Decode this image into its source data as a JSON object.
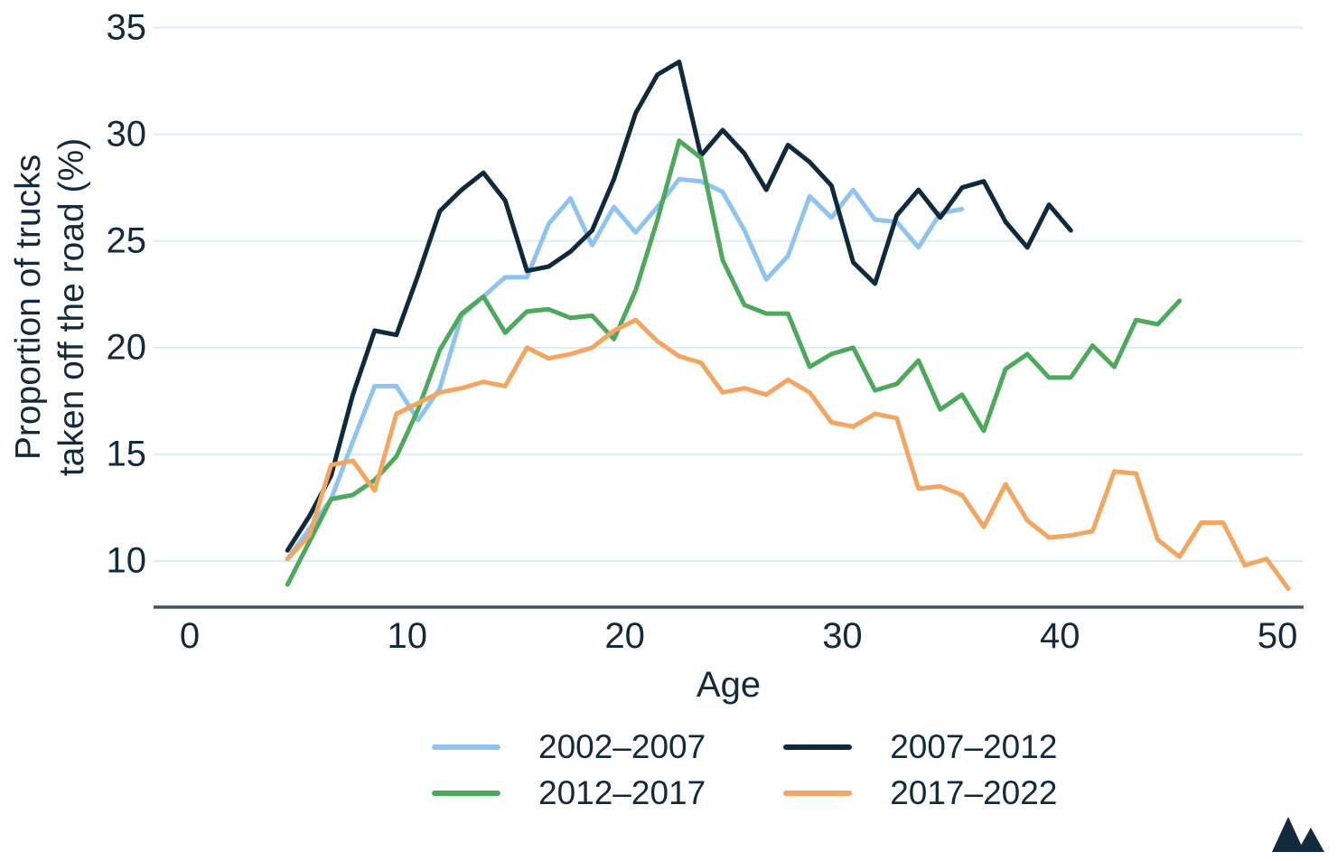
{
  "colors": {
    "text": "#13293d",
    "gridline": "#dcebf8",
    "axis_line": "#445468",
    "background": "#ffffff",
    "logo": "#13293d"
  },
  "logo": {
    "icon": "mountain-logo"
  },
  "chart_data": {
    "type": "line",
    "title": "",
    "xlabel": "Age",
    "ylabel_line1": "Proportion of trucks",
    "ylabel_line2": "taken off the road (%)",
    "x_ticks": [
      0,
      10,
      20,
      30,
      40,
      50
    ],
    "y_ticks": [
      10,
      15,
      20,
      25,
      30,
      35
    ],
    "xlim": [
      -1.66,
      51.2
    ],
    "ylim": [
      7.84,
      35.45
    ],
    "grid": "horizontal gridlines only",
    "legend_position": "bottom",
    "x_start": 4.5,
    "x_step": 1,
    "series": [
      {
        "name": "2002–2007",
        "color": "#8fc4f0",
        "values": [
          10.1,
          11.5,
          12.9,
          15.6,
          18.2,
          18.2,
          16.6,
          18.1,
          21.5,
          22.4,
          23.3,
          23.3,
          25.8,
          27.0,
          24.8,
          26.6,
          25.4,
          26.6,
          27.9,
          27.8,
          27.3,
          25.5,
          23.2,
          24.3,
          27.1,
          26.1,
          27.4,
          26.0,
          25.9,
          24.7,
          26.3,
          26.5
        ]
      },
      {
        "name": "2007–2012",
        "color": "#0f2a3c",
        "values": [
          10.5,
          12.1,
          14.0,
          17.8,
          20.8,
          20.6,
          23.4,
          26.4,
          27.4,
          28.2,
          26.9,
          23.6,
          23.8,
          24.5,
          25.5,
          27.9,
          31.0,
          32.8,
          33.4,
          29.0,
          30.2,
          29.1,
          27.4,
          29.5,
          28.7,
          27.6,
          24.0,
          23.0,
          26.2,
          27.4,
          26.1,
          27.5,
          27.8,
          25.9,
          24.7,
          26.7,
          25.5
        ]
      },
      {
        "name": "2012–2017",
        "color": "#4fa95c",
        "values": [
          8.9,
          10.9,
          12.9,
          13.1,
          13.8,
          14.9,
          17.1,
          19.9,
          21.6,
          22.4,
          20.7,
          21.7,
          21.8,
          21.4,
          21.5,
          20.4,
          22.7,
          26.0,
          29.7,
          28.9,
          24.1,
          22.0,
          21.6,
          21.6,
          19.1,
          19.7,
          20.0,
          18.0,
          18.3,
          19.4,
          17.1,
          17.8,
          16.1,
          19.0,
          19.7,
          18.6,
          18.6,
          20.1,
          19.1,
          21.3,
          21.1,
          22.2
        ]
      },
      {
        "name": "2017–2022",
        "color": "#f3a661",
        "values": [
          10.1,
          11.2,
          14.5,
          14.7,
          13.3,
          16.9,
          17.4,
          17.9,
          18.1,
          18.4,
          18.2,
          20.0,
          19.5,
          19.7,
          20.0,
          20.8,
          21.3,
          20.3,
          19.6,
          19.3,
          17.9,
          18.1,
          17.8,
          18.5,
          17.9,
          16.5,
          16.3,
          16.9,
          16.7,
          13.4,
          13.5,
          13.1,
          11.6,
          13.6,
          11.9,
          11.1,
          11.2,
          11.4,
          14.2,
          14.1,
          11.0,
          10.2,
          11.8,
          11.8,
          9.8,
          10.1,
          8.7
        ]
      }
    ]
  }
}
